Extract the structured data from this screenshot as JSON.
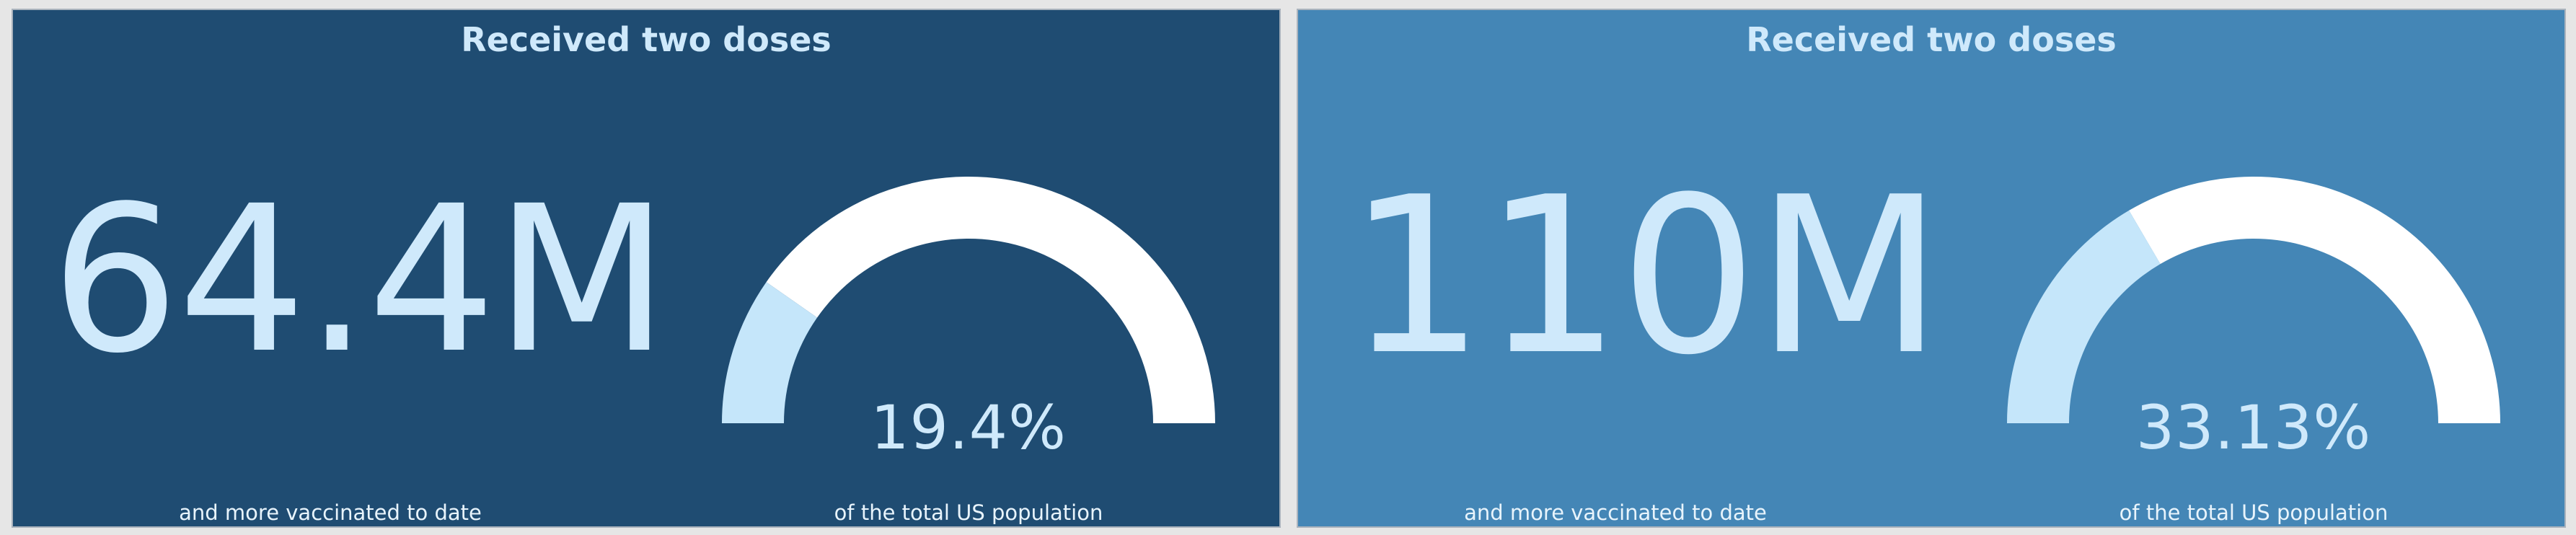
{
  "colors": {
    "panel_left_bg": "#1f4c72",
    "panel_right_bg": "#4486b6",
    "gauge_fill": "#c5e6fa",
    "gauge_track": "#ffffff",
    "text": "#cfe9fb"
  },
  "panels": [
    {
      "title": "Received two doses",
      "value_text": "64.4M",
      "value_caption": "and more vaccinated to date",
      "gauge_percent_text": "19.4%",
      "gauge_fraction": 0.194,
      "gauge_caption": "of the total US population"
    },
    {
      "title": "Received two doses",
      "value_text": "110M",
      "value_caption": "and more vaccinated to date",
      "gauge_percent_text": "33.13%",
      "gauge_fraction": 0.3313,
      "gauge_caption": "of the total US population"
    }
  ]
}
